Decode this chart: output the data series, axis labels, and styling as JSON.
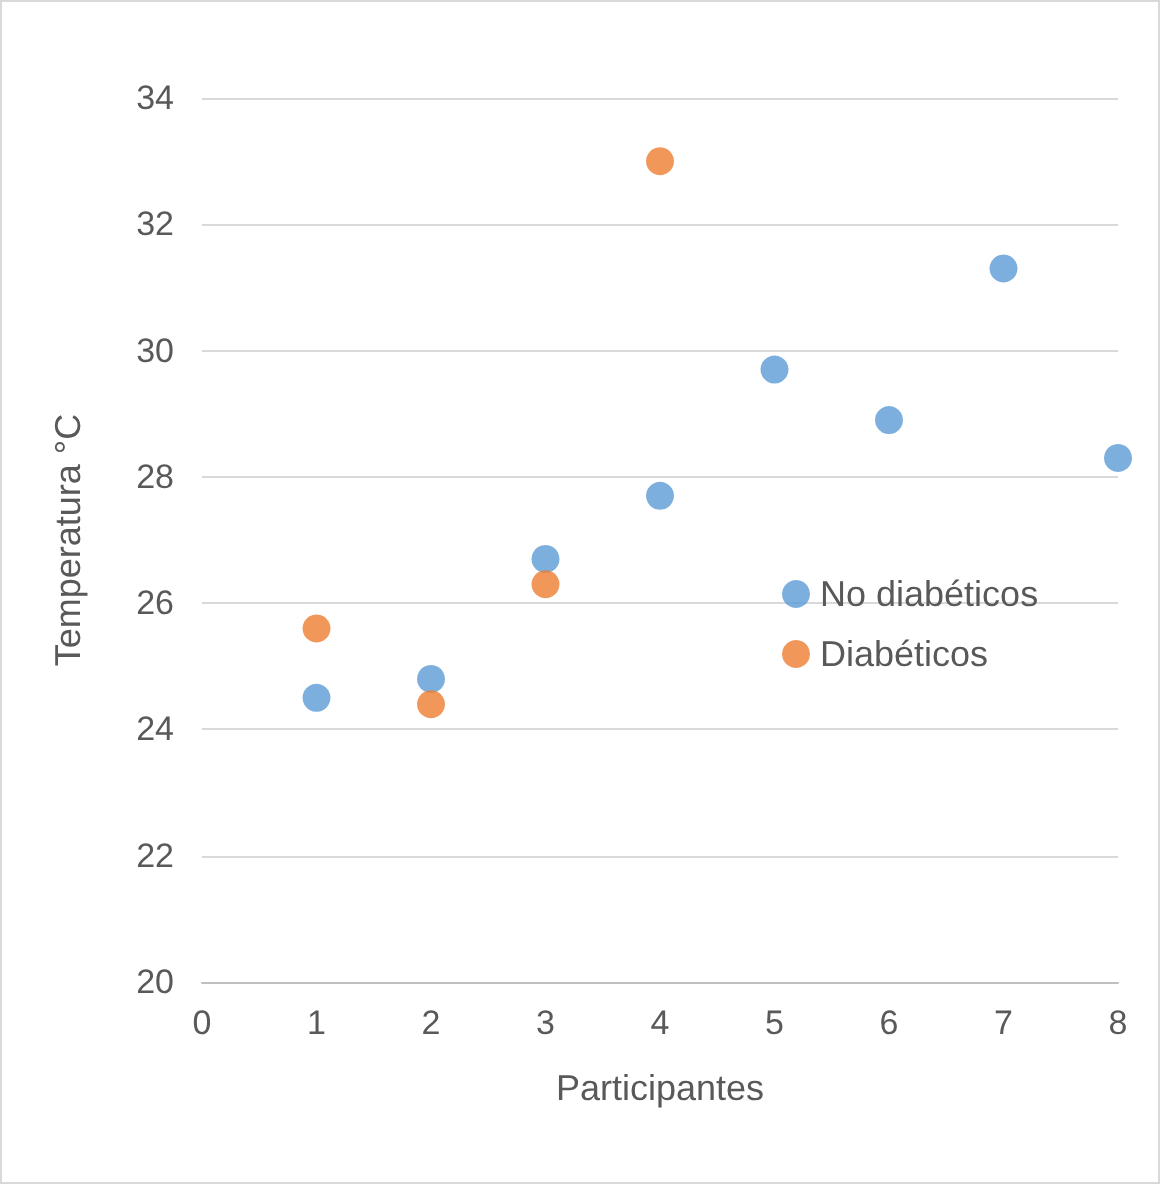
{
  "chart_data": {
    "type": "scatter",
    "xlabel": "Participantes",
    "ylabel": "Temperatura °C",
    "x": [
      1,
      2,
      3,
      4,
      5,
      6,
      7,
      8
    ],
    "series": [
      {
        "name": "No diabéticos",
        "color": "#5b9bd5",
        "values": [
          24.5,
          24.8,
          26.7,
          27.7,
          29.7,
          28.9,
          31.3,
          28.3
        ]
      },
      {
        "name": "Diabéticos",
        "color": "#ed7d31",
        "values": [
          25.6,
          24.4,
          26.3,
          33.0,
          null,
          null,
          null,
          null
        ]
      }
    ],
    "xlim": [
      0,
      8
    ],
    "xticks": [
      0,
      1,
      2,
      3,
      4,
      5,
      6,
      7,
      8
    ],
    "ylim": [
      20,
      34
    ],
    "yticks": [
      20,
      22,
      24,
      26,
      28,
      30,
      32,
      34
    ],
    "grid": "y",
    "legend": "right",
    "marker": "circle"
  }
}
